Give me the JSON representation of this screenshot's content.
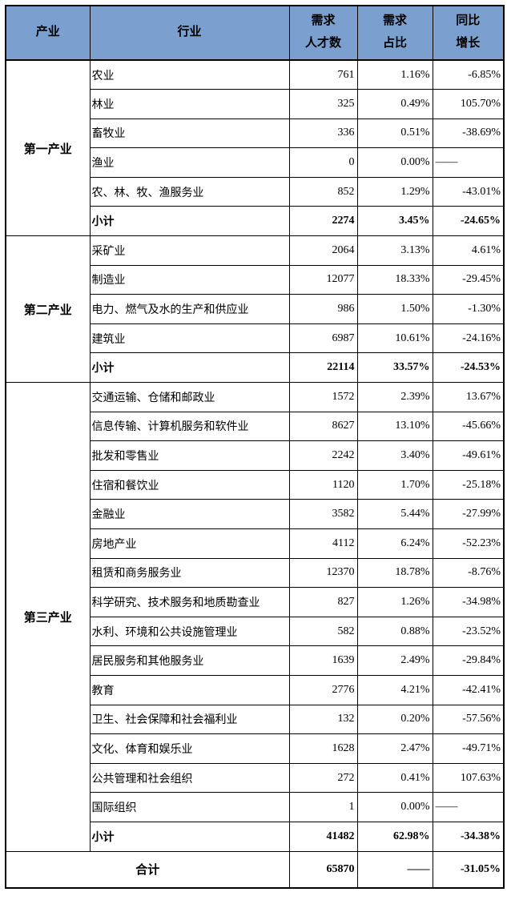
{
  "colors": {
    "header_bg": "#7BA0CF",
    "border": "#000000",
    "background": "#FFFFFF",
    "text": "#000000"
  },
  "table": {
    "header": {
      "industry_category": "产业",
      "industry": "行业",
      "demand_count": "需求\n人才数",
      "demand_share": "需求\n占比",
      "yoy_growth": "同比\n增长"
    },
    "sections": [
      {
        "category": "第一产业",
        "rows": [
          {
            "industry": "农业",
            "count": "761",
            "share": "1.16%",
            "growth": "-6.85%"
          },
          {
            "industry": "林业",
            "count": "325",
            "share": "0.49%",
            "growth": "105.70%"
          },
          {
            "industry": "畜牧业",
            "count": "336",
            "share": "0.51%",
            "growth": "-38.69%"
          },
          {
            "industry": "渔业",
            "count": "0",
            "share": "0.00%",
            "growth": "——"
          },
          {
            "industry": "农、林、牧、渔服务业",
            "count": "852",
            "share": "1.29%",
            "growth": "-43.01%"
          },
          {
            "industry": "小计",
            "count": "2274",
            "share": "3.45%",
            "growth": "-24.65%"
          }
        ]
      },
      {
        "category": "第二产业",
        "rows": [
          {
            "industry": "采矿业",
            "count": "2064",
            "share": "3.13%",
            "growth": "4.61%"
          },
          {
            "industry": "制造业",
            "count": "12077",
            "share": "18.33%",
            "growth": "-29.45%"
          },
          {
            "industry": "电力、燃气及水的生产和供应业",
            "count": "986",
            "share": "1.50%",
            "growth": "-1.30%"
          },
          {
            "industry": "建筑业",
            "count": "6987",
            "share": "10.61%",
            "growth": "-24.16%"
          },
          {
            "industry": "小计",
            "count": "22114",
            "share": "33.57%",
            "growth": "-24.53%"
          }
        ]
      },
      {
        "category": "第三产业",
        "rows": [
          {
            "industry": "交通运输、仓储和邮政业",
            "count": "1572",
            "share": "2.39%",
            "growth": "13.67%"
          },
          {
            "industry": "信息传输、计算机服务和软件业",
            "count": "8627",
            "share": "13.10%",
            "growth": "-45.66%"
          },
          {
            "industry": "批发和零售业",
            "count": "2242",
            "share": "3.40%",
            "growth": "-49.61%"
          },
          {
            "industry": "住宿和餐饮业",
            "count": "1120",
            "share": "1.70%",
            "growth": "-25.18%"
          },
          {
            "industry": "金融业",
            "count": "3582",
            "share": "5.44%",
            "growth": "-27.99%"
          },
          {
            "industry": "房地产业",
            "count": "4112",
            "share": "6.24%",
            "growth": "-52.23%"
          },
          {
            "industry": "租赁和商务服务业",
            "count": "12370",
            "share": "18.78%",
            "growth": "-8.76%"
          },
          {
            "industry": "科学研究、技术服务和地质勘查业",
            "count": "827",
            "share": "1.26%",
            "growth": "-34.98%"
          },
          {
            "industry": "水利、环境和公共设施管理业",
            "count": "582",
            "share": "0.88%",
            "growth": "-23.52%"
          },
          {
            "industry": "居民服务和其他服务业",
            "count": "1639",
            "share": "2.49%",
            "growth": "-29.84%"
          },
          {
            "industry": "教育",
            "count": "2776",
            "share": "4.21%",
            "growth": "-42.41%"
          },
          {
            "industry": "卫生、社会保障和社会福利业",
            "count": "132",
            "share": "0.20%",
            "growth": "-57.56%"
          },
          {
            "industry": "文化、体育和娱乐业",
            "count": "1628",
            "share": "2.47%",
            "growth": "-49.71%"
          },
          {
            "industry": "公共管理和社会组织",
            "count": "272",
            "share": "0.41%",
            "growth": "107.63%"
          },
          {
            "industry": "国际组织",
            "count": "1",
            "share": "0.00%",
            "growth": "——"
          },
          {
            "industry": "小计",
            "count": "41482",
            "share": "62.98%",
            "growth": "-34.38%"
          }
        ]
      }
    ],
    "total": {
      "label": "合计",
      "count": "65870",
      "share": "——",
      "growth": "-31.05%"
    }
  },
  "chart_data": {
    "type": "table",
    "columns": [
      "产业",
      "行业",
      "需求人才数",
      "需求占比",
      "同比增长"
    ],
    "rows": [
      [
        "第一产业",
        "农业",
        761,
        "1.16%",
        "-6.85%"
      ],
      [
        "第一产业",
        "林业",
        325,
        "0.49%",
        "105.70%"
      ],
      [
        "第一产业",
        "畜牧业",
        336,
        "0.51%",
        "-38.69%"
      ],
      [
        "第一产业",
        "渔业",
        0,
        "0.00%",
        "——"
      ],
      [
        "第一产业",
        "农、林、牧、渔服务业",
        852,
        "1.29%",
        "-43.01%"
      ],
      [
        "第一产业",
        "小计",
        2274,
        "3.45%",
        "-24.65%"
      ],
      [
        "第二产业",
        "采矿业",
        2064,
        "3.13%",
        "4.61%"
      ],
      [
        "第二产业",
        "制造业",
        12077,
        "18.33%",
        "-29.45%"
      ],
      [
        "第二产业",
        "电力、燃气及水的生产和供应业",
        986,
        "1.50%",
        "-1.30%"
      ],
      [
        "第二产业",
        "建筑业",
        6987,
        "10.61%",
        "-24.16%"
      ],
      [
        "第二产业",
        "小计",
        22114,
        "33.57%",
        "-24.53%"
      ],
      [
        "第三产业",
        "交通运输、仓储和邮政业",
        1572,
        "2.39%",
        "13.67%"
      ],
      [
        "第三产业",
        "信息传输、计算机服务和软件业",
        8627,
        "13.10%",
        "-45.66%"
      ],
      [
        "第三产业",
        "批发和零售业",
        2242,
        "3.40%",
        "-49.61%"
      ],
      [
        "第三产业",
        "住宿和餐饮业",
        1120,
        "1.70%",
        "-25.18%"
      ],
      [
        "第三产业",
        "金融业",
        3582,
        "5.44%",
        "-27.99%"
      ],
      [
        "第三产业",
        "房地产业",
        4112,
        "6.24%",
        "-52.23%"
      ],
      [
        "第三产业",
        "租赁和商务服务业",
        12370,
        "18.78%",
        "-8.76%"
      ],
      [
        "第三产业",
        "科学研究、技术服务和地质勘查业",
        827,
        "1.26%",
        "-34.98%"
      ],
      [
        "第三产业",
        "水利、环境和公共设施管理业",
        582,
        "0.88%",
        "-23.52%"
      ],
      [
        "第三产业",
        "居民服务和其他服务业",
        1639,
        "2.49%",
        "-29.84%"
      ],
      [
        "第三产业",
        "教育",
        2776,
        "4.21%",
        "-42.41%"
      ],
      [
        "第三产业",
        "卫生、社会保障和社会福利业",
        132,
        "0.20%",
        "-57.56%"
      ],
      [
        "第三产业",
        "文化、体育和娱乐业",
        1628,
        "2.47%",
        "-49.71%"
      ],
      [
        "第三产业",
        "公共管理和社会组织",
        272,
        "0.41%",
        "107.63%"
      ],
      [
        "第三产业",
        "国际组织",
        1,
        "0.00%",
        "——"
      ],
      [
        "第三产业",
        "小计",
        41482,
        "62.98%",
        "-34.38%"
      ],
      [
        "合计",
        "",
        65870,
        "——",
        "-31.05%"
      ]
    ]
  }
}
